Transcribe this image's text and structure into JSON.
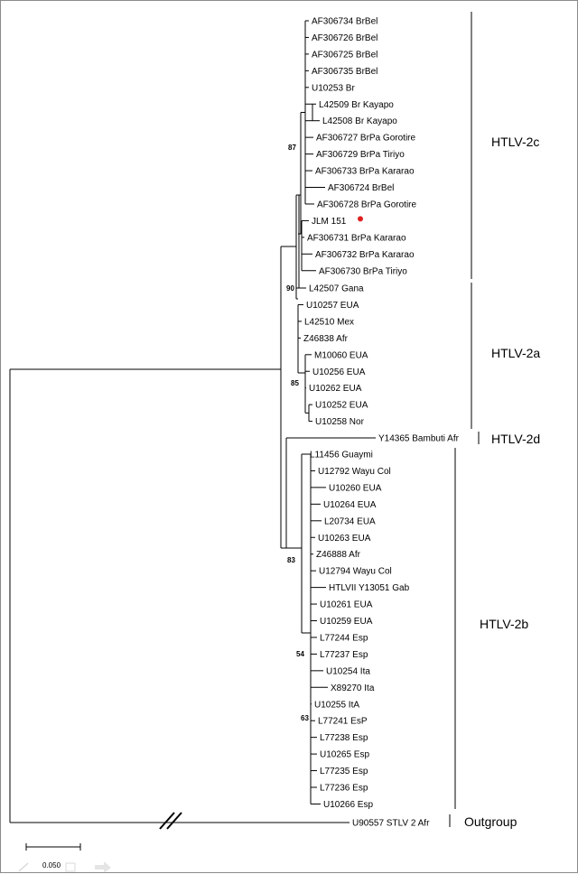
{
  "taxa": {
    "htlv2c": [
      "AF306734 BrBel",
      "AF306726 BrBel",
      "AF306725 BrBel",
      "AF306735 BrBel",
      "U10253 Br",
      "L42509 Br Kayapo",
      "L42508 Br Kayapo",
      "AF306727 BrPa Gorotire",
      "AF306729 BrPa Tiriyo",
      "AF306733 BrPa Kararao",
      "AF306724 BrBel",
      "AF306728 BrPa Gorotire",
      "JLM 151",
      "AF306731 BrPa Kararao",
      "AF306732 BrPa Kararao",
      "AF306730 BrPa Tiriyo"
    ],
    "htlv2a": [
      "L42507 Gana",
      "U10257 EUA",
      "L42510 Mex",
      "Z46838 Afr",
      "M10060 EUA",
      "U10256 EUA",
      "U10262 EUA",
      "U10252 EUA",
      "U10258 Nor"
    ],
    "htlv2d": [
      "Y14365 Bambuti Afr"
    ],
    "htlv2b": [
      "L11456 Guaymi",
      "U12792 Wayu Col",
      "U10260 EUA",
      "U10264 EUA",
      "L20734 EUA",
      "U10263 EUA",
      "Z46888 Afr",
      "U12794 Wayu Col",
      "HTLVII Y13051 Gab",
      "U10261 EUA",
      "U10259 EUA",
      "L77244 Esp",
      "L77237 Esp",
      "U10254 Ita",
      "X89270 Ita",
      "U10255 ItA",
      "L77241 EsP",
      "L77238 Esp",
      "U10265 Esp",
      "L77235 Esp",
      "L77236 Esp",
      "U10266 Esp"
    ],
    "outgroup": [
      "U90557 STLV 2 Afr"
    ]
  },
  "clade_labels": {
    "htlv2c": "HTLV-2c",
    "htlv2a": "HTLV-2a",
    "htlv2d": "HTLV-2d",
    "htlv2b": "HTLV-2b",
    "outgroup": "Outgroup"
  },
  "bootstrap": [
    "87",
    "90",
    "85",
    "83",
    "54",
    "63"
  ],
  "scale": "0.050",
  "colors": {
    "highlight_branch": "#e05050",
    "highlight_dot": "#e02020"
  }
}
